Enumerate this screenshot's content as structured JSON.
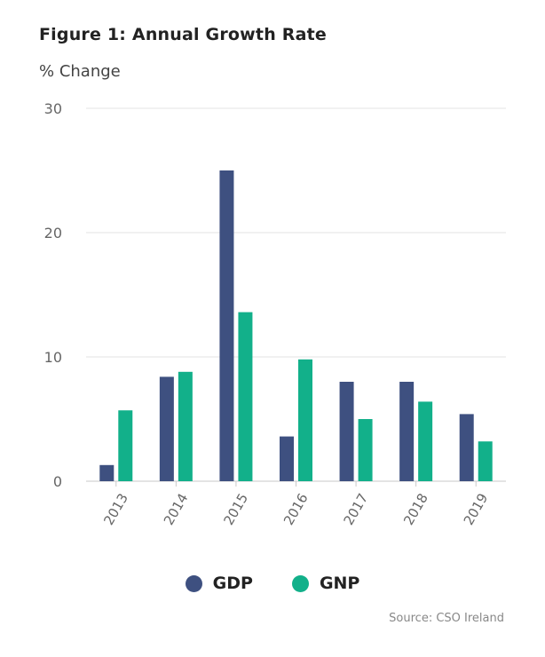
{
  "colors": {
    "gdp": "#3e5080",
    "gnp": "#12b08a",
    "grid": "#e3e3e3",
    "axis": "#c8c8c8",
    "tick": "#666666"
  },
  "chart_data": {
    "type": "bar",
    "title": "Figure 1: Annual Growth Rate",
    "ylabel": "% Change",
    "ylim": [
      0,
      30
    ],
    "yticks": [
      0,
      10,
      20,
      30
    ],
    "categories": [
      "2013",
      "2014",
      "2015",
      "2016",
      "2017",
      "2018",
      "2019"
    ],
    "series": [
      {
        "name": "GDP",
        "values": [
          1.3,
          8.4,
          25.0,
          3.6,
          8.0,
          8.0,
          5.4
        ]
      },
      {
        "name": "GNP",
        "values": [
          5.7,
          8.8,
          13.6,
          9.8,
          5.0,
          6.4,
          3.2
        ]
      }
    ],
    "legend": "bottom",
    "grid": true
  },
  "source": "Source: CSO Ireland"
}
